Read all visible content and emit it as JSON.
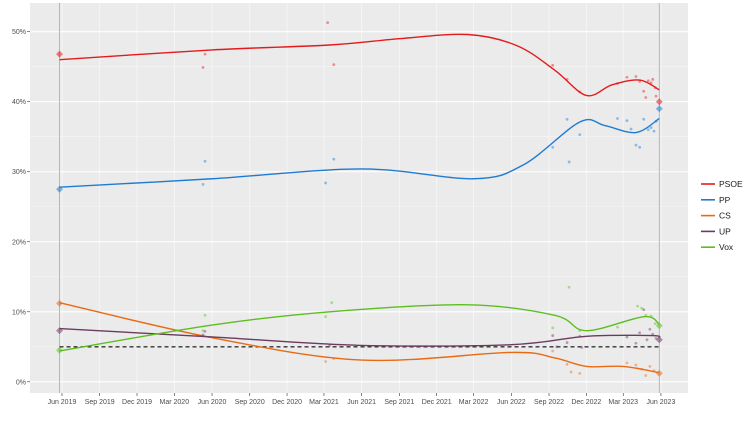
{
  "chart_data": {
    "type": "line",
    "title": "",
    "xlabel": "",
    "ylabel": "",
    "xlim": [
      "2019-03-15",
      "2023-08-06"
    ],
    "ylim": [
      -1.6,
      54.1
    ],
    "grid": true,
    "legend_position": "right",
    "x_ticks": [
      {
        "date": "2019-06-01",
        "label": "Jun 2019"
      },
      {
        "date": "2019-09-01",
        "label": "Sep 2019"
      },
      {
        "date": "2019-12-01",
        "label": "Dec 2019"
      },
      {
        "date": "2020-03-01",
        "label": "Mar 2020"
      },
      {
        "date": "2020-06-01",
        "label": "Jun 2020"
      },
      {
        "date": "2020-09-01",
        "label": "Sep 2020"
      },
      {
        "date": "2020-12-01",
        "label": "Dec 2020"
      },
      {
        "date": "2021-03-01",
        "label": "Mar 2021"
      },
      {
        "date": "2021-06-01",
        "label": "Jun 2021"
      },
      {
        "date": "2021-09-01",
        "label": "Sep 2021"
      },
      {
        "date": "2021-12-01",
        "label": "Dec 2021"
      },
      {
        "date": "2022-03-01",
        "label": "Mar 2022"
      },
      {
        "date": "2022-06-01",
        "label": "Jun 2022"
      },
      {
        "date": "2022-09-01",
        "label": "Sep 2022"
      },
      {
        "date": "2022-12-01",
        "label": "Dec 2022"
      },
      {
        "date": "2023-03-01",
        "label": "Mar 2023"
      },
      {
        "date": "2023-06-01",
        "label": "Jun 2023"
      }
    ],
    "y_ticks": [
      {
        "value": 0,
        "label": "0%"
      },
      {
        "value": 10,
        "label": "10%"
      },
      {
        "value": 20,
        "label": "20%"
      },
      {
        "value": 30,
        "label": "30%"
      },
      {
        "value": 40,
        "label": "40%"
      },
      {
        "value": 50,
        "label": "50%"
      }
    ],
    "threshold": 5,
    "election_dates": [
      "2019-05-26",
      "2023-05-28"
    ],
    "series": [
      {
        "name": "PSOE",
        "color": "#e41a1c",
        "trend": [
          [
            "2019-05-26",
            46.0
          ],
          [
            "2020-06-01",
            47.4
          ],
          [
            "2021-03-15",
            48.1
          ],
          [
            "2021-09-01",
            49.0
          ],
          [
            "2022-02-15",
            49.6
          ],
          [
            "2022-06-15",
            48.0
          ],
          [
            "2022-09-15",
            44.5
          ],
          [
            "2022-12-01",
            40.9
          ],
          [
            "2023-02-01",
            42.4
          ],
          [
            "2023-04-10",
            43.1
          ],
          [
            "2023-05-28",
            41.7
          ]
        ],
        "elections": [
          [
            "2019-05-26",
            46.8
          ],
          [
            "2023-05-28",
            40.0
          ]
        ],
        "polls": [
          [
            "2020-05-15",
            46.8
          ],
          [
            "2020-05-10",
            44.9
          ],
          [
            "2021-03-10",
            51.3
          ],
          [
            "2021-03-25",
            45.3
          ],
          [
            "2022-09-10",
            45.2
          ],
          [
            "2022-10-15",
            43.2
          ],
          [
            "2022-11-15",
            41.4
          ],
          [
            "2023-02-15",
            42.6
          ],
          [
            "2023-03-10",
            43.5
          ],
          [
            "2023-04-01",
            43.6
          ],
          [
            "2023-04-10",
            42.9
          ],
          [
            "2023-04-20",
            41.5
          ],
          [
            "2023-04-25",
            40.6
          ],
          [
            "2023-05-01",
            43.0
          ],
          [
            "2023-05-08",
            42.7
          ],
          [
            "2023-05-12",
            43.2
          ],
          [
            "2023-05-18",
            42.0
          ],
          [
            "2023-05-20",
            40.8
          ]
        ]
      },
      {
        "name": "PP",
        "color": "#1f7bd0",
        "trend": [
          [
            "2019-05-26",
            27.8
          ],
          [
            "2020-06-01",
            29.0
          ],
          [
            "2021-06-01",
            30.4
          ],
          [
            "2022-03-01",
            29.0
          ],
          [
            "2022-07-01",
            31.0
          ],
          [
            "2022-11-15",
            37.1
          ],
          [
            "2023-01-15",
            36.6
          ],
          [
            "2023-04-01",
            35.6
          ],
          [
            "2023-05-28",
            37.6
          ]
        ],
        "elections": [
          [
            "2019-05-26",
            27.5
          ],
          [
            "2023-05-28",
            39.0
          ]
        ],
        "polls": [
          [
            "2020-05-15",
            31.5
          ],
          [
            "2020-05-10",
            28.2
          ],
          [
            "2021-03-05",
            28.4
          ],
          [
            "2021-03-25",
            31.8
          ],
          [
            "2022-09-10",
            33.5
          ],
          [
            "2022-10-15",
            37.5
          ],
          [
            "2022-10-20",
            31.4
          ],
          [
            "2022-11-15",
            35.3
          ],
          [
            "2023-02-15",
            37.6
          ],
          [
            "2023-03-10",
            37.3
          ],
          [
            "2023-03-20",
            36.1
          ],
          [
            "2023-04-01",
            33.8
          ],
          [
            "2023-04-10",
            33.5
          ],
          [
            "2023-04-20",
            37.5
          ],
          [
            "2023-05-01",
            36.0
          ],
          [
            "2023-05-08",
            36.3
          ],
          [
            "2023-05-15",
            35.8
          ],
          [
            "2023-05-20",
            37.2
          ]
        ]
      },
      {
        "name": "CS",
        "color": "#ea6a14",
        "trend": [
          [
            "2019-05-26",
            11.3
          ],
          [
            "2020-06-01",
            6.3
          ],
          [
            "2021-06-01",
            3.1
          ],
          [
            "2022-06-01",
            4.2
          ],
          [
            "2022-09-15",
            3.4
          ],
          [
            "2022-12-01",
            2.2
          ],
          [
            "2023-03-01",
            2.2
          ],
          [
            "2023-05-28",
            1.3
          ]
        ],
        "elections": [
          [
            "2019-05-26",
            11.2
          ],
          [
            "2023-05-28",
            1.2
          ]
        ],
        "polls": [
          [
            "2021-03-05",
            2.9
          ],
          [
            "2021-03-25",
            3.3
          ],
          [
            "2022-09-10",
            4.4
          ],
          [
            "2022-10-15",
            2.5
          ],
          [
            "2022-10-25",
            1.4
          ],
          [
            "2022-11-15",
            1.2
          ],
          [
            "2023-03-10",
            2.7
          ],
          [
            "2023-04-01",
            2.4
          ],
          [
            "2023-04-15",
            1.8
          ],
          [
            "2023-04-25",
            0.9
          ],
          [
            "2023-05-05",
            2.2
          ],
          [
            "2023-05-15",
            1.6
          ]
        ]
      },
      {
        "name": "UP",
        "color": "#6c3b5e",
        "trend": [
          [
            "2019-05-26",
            7.6
          ],
          [
            "2020-06-01",
            6.4
          ],
          [
            "2021-06-01",
            5.2
          ],
          [
            "2022-06-01",
            5.3
          ],
          [
            "2022-12-01",
            6.5
          ],
          [
            "2023-05-10",
            6.6
          ],
          [
            "2023-05-28",
            6.3
          ]
        ],
        "elections": [
          [
            "2019-05-26",
            7.3
          ],
          [
            "2023-05-28",
            6.0
          ]
        ],
        "polls": [
          [
            "2020-05-15",
            7.2
          ],
          [
            "2020-05-10",
            6.7
          ],
          [
            "2021-03-15",
            5.2
          ],
          [
            "2022-09-10",
            6.6
          ],
          [
            "2022-09-20",
            5.0
          ],
          [
            "2022-10-15",
            5.6
          ],
          [
            "2022-11-15",
            6.5
          ],
          [
            "2022-11-20",
            4.9
          ],
          [
            "2023-03-10",
            6.4
          ],
          [
            "2023-04-01",
            5.5
          ],
          [
            "2023-04-10",
            7.0
          ],
          [
            "2023-04-20",
            10.3
          ],
          [
            "2023-04-28",
            6.0
          ],
          [
            "2023-05-05",
            7.5
          ],
          [
            "2023-05-12",
            6.8
          ],
          [
            "2023-05-20",
            6.2
          ]
        ]
      },
      {
        "name": "Vox",
        "color": "#5cbf1e",
        "trend": [
          [
            "2019-05-26",
            4.4
          ],
          [
            "2020-06-01",
            8.1
          ],
          [
            "2021-03-15",
            10.0
          ],
          [
            "2022-02-15",
            11.0
          ],
          [
            "2022-09-15",
            9.5
          ],
          [
            "2022-12-01",
            7.3
          ],
          [
            "2023-04-20",
            9.3
          ],
          [
            "2023-05-28",
            8.2
          ]
        ],
        "elections": [
          [
            "2019-05-26",
            4.5
          ],
          [
            "2023-05-28",
            8.0
          ]
        ],
        "polls": [
          [
            "2020-05-15",
            9.5
          ],
          [
            "2020-05-10",
            7.3
          ],
          [
            "2021-03-20",
            11.3
          ],
          [
            "2021-03-05",
            9.3
          ],
          [
            "2022-09-10",
            7.7
          ],
          [
            "2022-10-20",
            13.5
          ],
          [
            "2022-11-15",
            7.3
          ],
          [
            "2023-02-15",
            7.8
          ],
          [
            "2023-04-05",
            10.8
          ],
          [
            "2023-04-15",
            10.5
          ],
          [
            "2023-04-25",
            9.5
          ],
          [
            "2023-05-08",
            9.4
          ],
          [
            "2023-05-18",
            8.3
          ]
        ]
      }
    ]
  }
}
